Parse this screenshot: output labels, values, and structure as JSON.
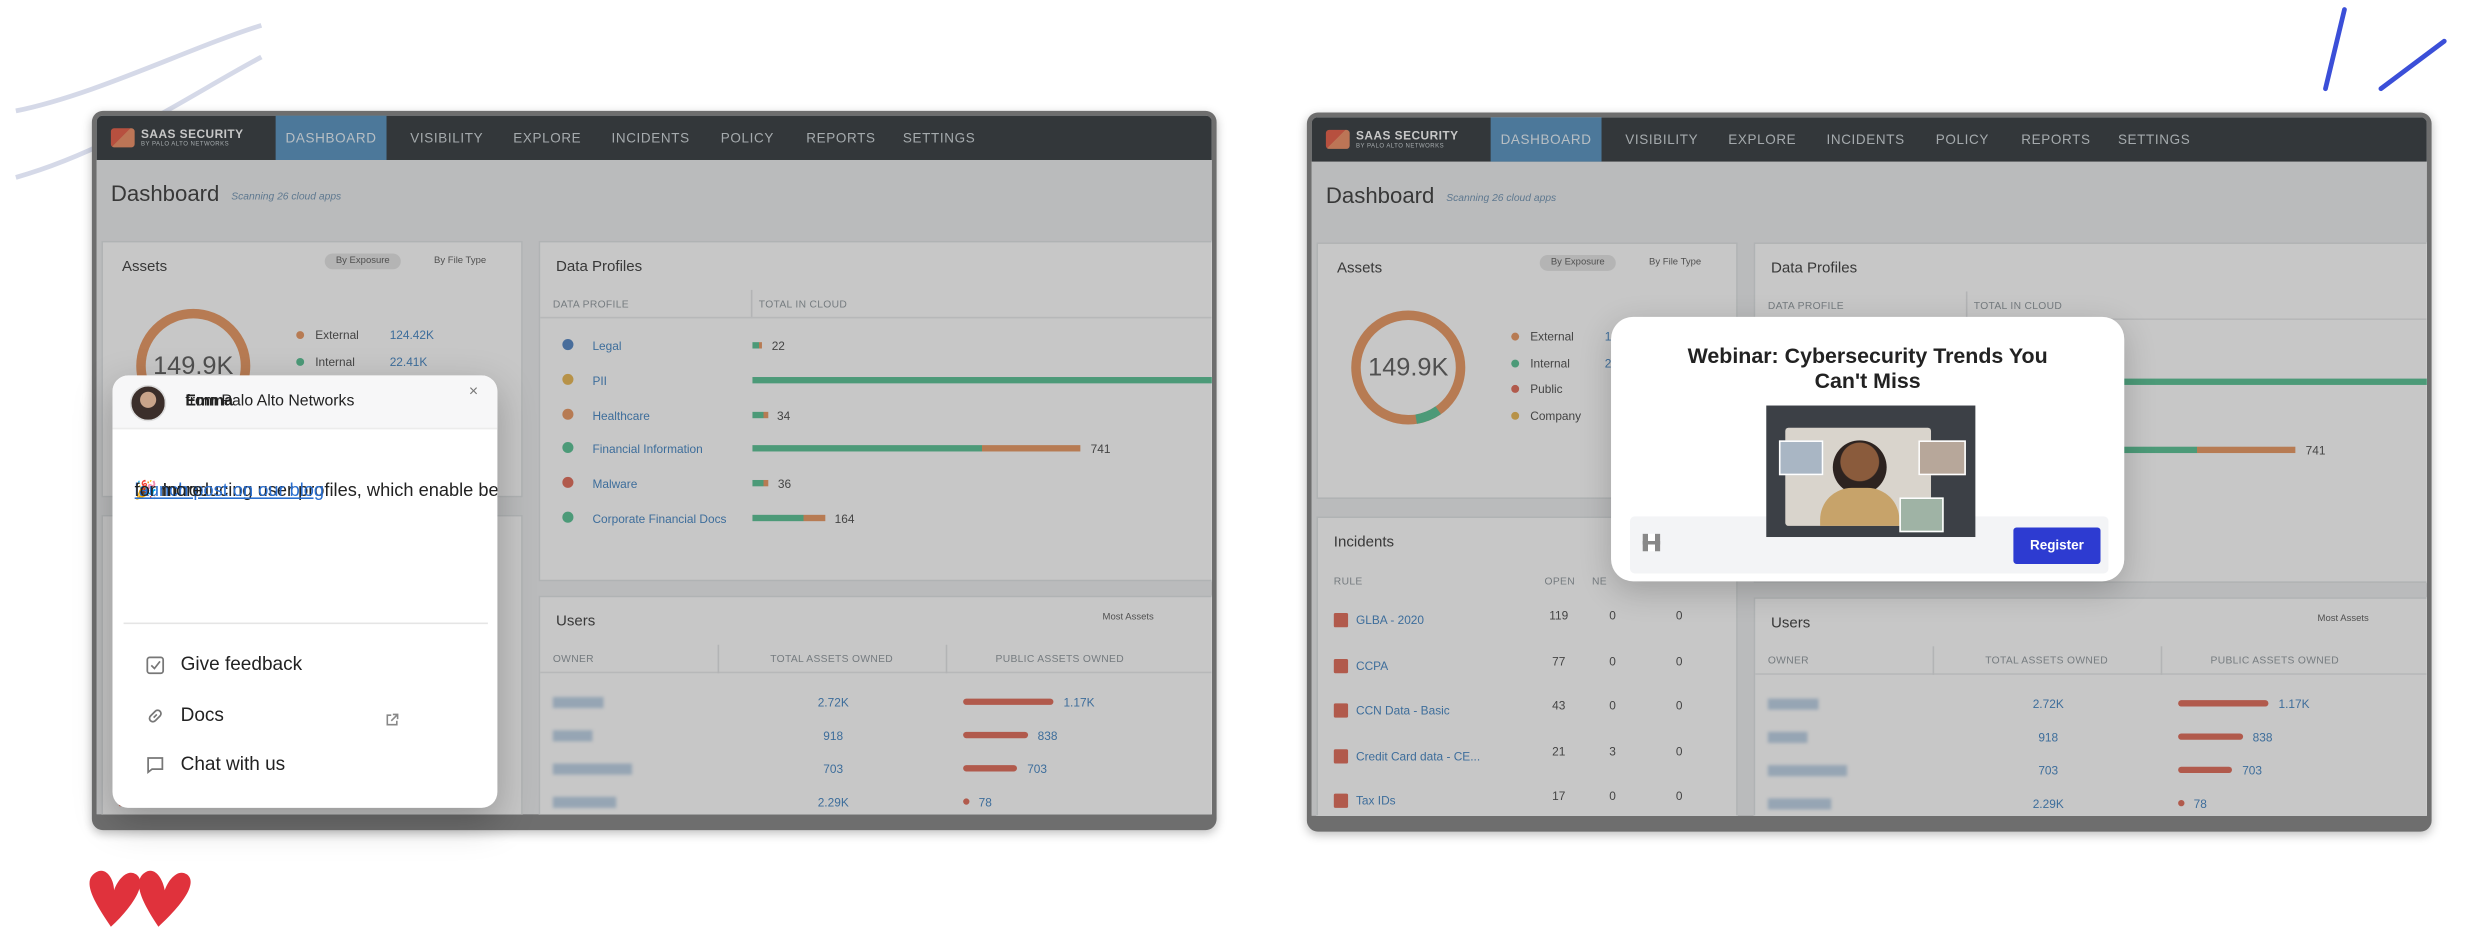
{
  "app": {
    "brand": "SAAS SECURITY",
    "brand_sub": "BY PALO ALTO NETWORKS",
    "nav": [
      "DASHBOARD",
      "VISIBILITY",
      "EXPLORE",
      "INCIDENTS",
      "POLICY",
      "REPORTS",
      "SETTINGS"
    ],
    "page_title": "Dashboard",
    "scanning": "Scanning 26 cloud apps",
    "assets": {
      "title": "Assets",
      "toggles": [
        "By Exposure",
        "By File Type"
      ],
      "total": "149.9K",
      "legend": [
        {
          "label": "External",
          "value": "124.42K",
          "color": "#e8935a"
        },
        {
          "label": "Internal",
          "value": "22.41K",
          "color": "#4fbf8f"
        },
        {
          "label": "Public",
          "color": "#e0634f"
        },
        {
          "label": "Company",
          "color": "#e8b44a"
        }
      ]
    },
    "data_profiles": {
      "title": "Data Profiles",
      "columns": [
        "DATA PROFILE",
        "TOTAL IN CLOUD"
      ],
      "rows": [
        {
          "name": "Legal",
          "total": 22,
          "icon_color": "#4a7fc0"
        },
        {
          "name": "PII",
          "total": null,
          "icon_color": "#e8b44a"
        },
        {
          "name": "Healthcare",
          "total": 34,
          "icon_color": "#e8935a"
        },
        {
          "name": "Financial Information",
          "total": 741,
          "icon_color": "#4fbf8f"
        },
        {
          "name": "Malware",
          "total": 36,
          "icon_color": "#e0634f"
        },
        {
          "name": "Corporate Financial Docs",
          "total": 164,
          "icon_color": "#4fbf8f"
        }
      ]
    },
    "users": {
      "title": "Users",
      "sort": "Most Assets",
      "columns": [
        "OWNER",
        "TOTAL ASSETS OWNED",
        "PUBLIC ASSETS OWNED"
      ],
      "total_labels": [
        "2.72K",
        "918",
        "703",
        "2.29K"
      ],
      "public_values": [
        1170,
        838,
        703,
        78
      ],
      "public_labels": [
        "1.17K",
        "838",
        "703",
        "78"
      ]
    },
    "incidents": {
      "title": "Incidents",
      "columns": [
        "RULE",
        "OPEN",
        "NE"
      ],
      "rows": [
        {
          "rule": "GLBA - 2020",
          "counts": [
            119,
            0,
            0
          ]
        },
        {
          "rule": "CCPA",
          "counts": [
            77,
            0,
            0
          ]
        },
        {
          "rule": "CCN Data - Basic",
          "counts": [
            43,
            0,
            0
          ]
        },
        {
          "rule": "Credit Card data - CE...",
          "counts": [
            21,
            3,
            0
          ]
        },
        {
          "rule": "Tax IDs",
          "counts": [
            17,
            0,
            0
          ]
        }
      ]
    }
  },
  "popup": {
    "sender": "Emma",
    "sender_org": "from Palo Alto Networks",
    "close": "×",
    "message_intro": "🎉 Introducing user profiles, which enable better user management and enhanced security. Check out the ",
    "message_link": "launch post on our blog",
    "message_outro": " for more.",
    "menu": [
      "Give feedback",
      "Docs",
      "Chat with us"
    ]
  },
  "webinar": {
    "title": "Webinar: Cybersecurity Trends You Can't Miss",
    "button": "Register"
  }
}
